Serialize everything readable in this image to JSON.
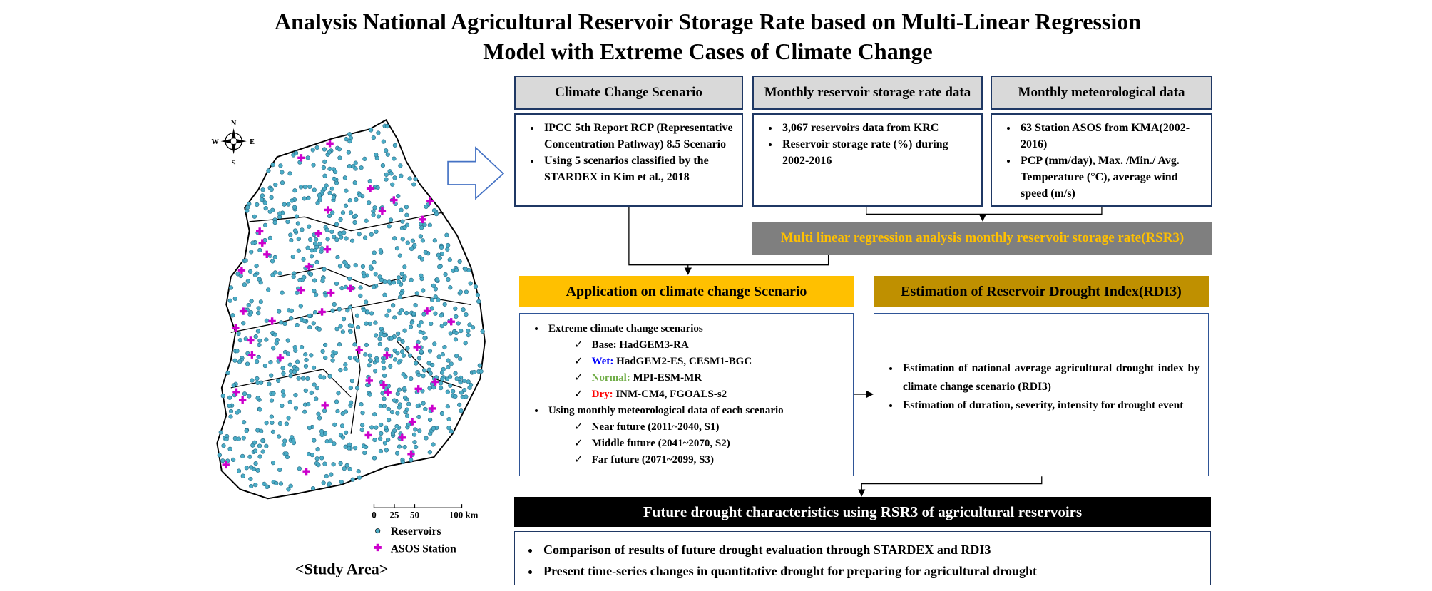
{
  "title": [
    "Analysis National Agricultural Reservoir Storage Rate based on Multi-Linear Regression",
    "Model with Extreme Cases of Climate Change"
  ],
  "map": {
    "compass": [
      "N",
      "S",
      "W",
      "E"
    ],
    "scale": [
      "0",
      "25",
      "50",
      "100 km"
    ],
    "legend": [
      "Reservoirs",
      "ASOS Station"
    ],
    "caption": "<Study Area>",
    "reservoir_color": "#4bacc6",
    "station_color": "#cc00cc"
  },
  "inputs": [
    {
      "header": "Climate Change Scenario",
      "bullets": [
        "IPCC 5th Report RCP (Representative Concentration Pathway) 8.5 Scenario",
        "Using 5 scenarios classified by the STARDEX in Kim et al., 2018"
      ]
    },
    {
      "header": "Monthly reservoir storage rate data",
      "bullets": [
        "3,067 reservoirs data from KRC",
        "Reservoir storage rate (%) during 2002-2016"
      ]
    },
    {
      "header": "Monthly meteorological data",
      "bullets": [
        "63 Station ASOS from KMA(2002-2016)",
        "PCP (mm/day), Max. /Min./ Avg. Temperature (°C), average wind speed (m/s)"
      ]
    }
  ],
  "regression": "Multi linear regression analysis monthly reservoir storage rate(RSR3)",
  "application": {
    "header": "Application  on climate change Scenario",
    "items": [
      {
        "text": "Extreme climate change scenarios",
        "sub": [
          {
            "text": "Base: HadGEM3-RA"
          },
          {
            "label": "Wet:",
            "color": "#0000ff",
            "text": "HadGEM2-ES,  CESM1-BGC"
          },
          {
            "label": "Normal:",
            "color": "#70ad47",
            "text": "MPI-ESM-MR"
          },
          {
            "label": "Dry:",
            "color": "#ff0000",
            "text": "INM-CM4,  FGOALS-s2"
          }
        ]
      },
      {
        "text": "Using monthly meteorological data of each scenario",
        "sub": [
          {
            "text": "Near future (2011~2040, S1)"
          },
          {
            "text": "Middle future (2041~2070, S2)"
          },
          {
            "text": "Far future (2071~2099, S3)"
          }
        ]
      }
    ]
  },
  "estimation": {
    "header": "Estimation  of Reservoir Drought Index(RDI3)",
    "bullets": [
      "Estimation  of national average agricultural  drought index by climate change scenario (RDI3)",
      "Estimation  of duration,  severity, intensity for drought event"
    ]
  },
  "future": {
    "header": "Future  drought  characteristics  using  RSR3 of agricultural  reservoirs",
    "bullets": [
      "Comparison of results of future drought evaluation through STARDEX and RDI3",
      "Present time-series changes in quantitative drought for preparing for agricultural drought"
    ]
  }
}
